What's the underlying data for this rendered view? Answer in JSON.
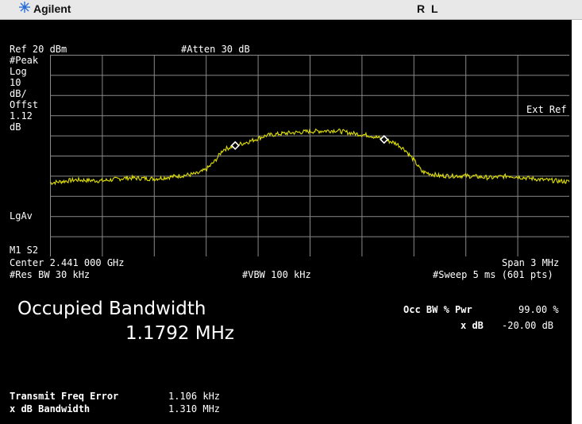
{
  "top_bar": {
    "brand": "Agilent",
    "status": "R L",
    "logo_icon": "starburst-logo-icon"
  },
  "params": {
    "ref": "Ref 20 dBm",
    "atten": "#Atten 30 dB",
    "left_labels": [
      "#Peak",
      "Log",
      "10",
      "dB/",
      "Offst",
      "1.12",
      "dB"
    ],
    "ext_ref": "Ext Ref",
    "lgav": "LgAv",
    "m1s2": "M1  S2",
    "center": "Center 2.441 000 GHz",
    "span": "Span 3 MHz",
    "res_bw": "#Res BW 30 kHz",
    "vbw": "#VBW 100 kHz",
    "sweep": "#Sweep 5 ms (601 pts)"
  },
  "results": {
    "occ_bw_title": "Occupied Bandwidth",
    "occ_bw_value": "1.1792 MHz",
    "occ_pwr_label": "Occ BW % Pwr",
    "occ_pwr_value": "99.00 %",
    "xdb_label": "x dB",
    "xdb_value": "-20.00 dB",
    "tx_freq_err_label": "Transmit Freq Error",
    "tx_freq_err_value": "1.106 kHz",
    "xdb_bw_label": "x dB Bandwidth",
    "xdb_bw_value": "1.310 MHz"
  },
  "colors": {
    "trace": "#e0e000",
    "grid": "#8a8a8a",
    "marker": "#ffffff",
    "background": "#000000"
  },
  "chart_data": {
    "type": "line",
    "xlabel": "",
    "ylabel": "",
    "xlim": [
      2.4395,
      2.4425
    ],
    "ylim": [
      -80,
      20
    ],
    "x": [
      2.4395,
      2.43965,
      2.4398,
      2.43995,
      2.4401,
      2.44025,
      2.44035,
      2.4404,
      2.44045,
      2.4405,
      2.44057,
      2.44065,
      2.44075,
      2.44085,
      2.441,
      2.44115,
      2.44125,
      2.44135,
      2.44143,
      2.4415,
      2.44155,
      2.4416,
      2.44165,
      2.44175,
      2.4419,
      2.44205,
      2.44215,
      2.44235,
      2.4425
    ],
    "series": [
      {
        "values": [
          -43.5,
          -42,
          -42.5,
          -41,
          -41.5,
          -40,
          -39,
          -37,
          -33,
          -27,
          -25,
          -23,
          -20,
          -19,
          -18,
          -17.5,
          -19,
          -20,
          -22,
          -24,
          -27,
          -32,
          -38,
          -40,
          -40,
          -41,
          -40,
          -42,
          -43
        ]
      }
    ],
    "markers": [
      {
        "x": 2.44057,
        "y": -25
      },
      {
        "x": 2.44143,
        "y": -22
      }
    ]
  }
}
